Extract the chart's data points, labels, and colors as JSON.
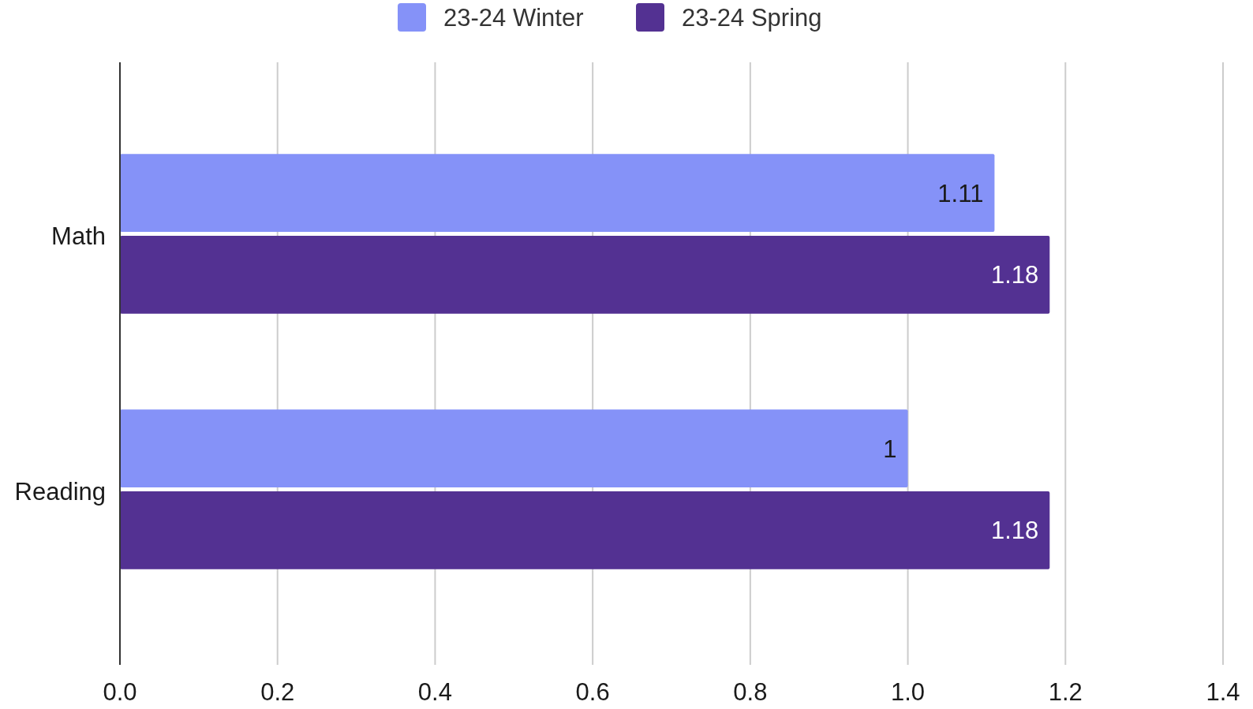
{
  "chart_data": {
    "type": "bar",
    "orientation": "horizontal",
    "categories": [
      "Math",
      "Reading"
    ],
    "series": [
      {
        "name": "23-24 Winter",
        "color": "#8592f8",
        "values": [
          1.11,
          1
        ]
      },
      {
        "name": "23-24 Spring",
        "color": "#533192",
        "values": [
          1.18,
          1.18
        ]
      }
    ],
    "xlim": [
      0,
      1.4
    ],
    "xticks": [
      {
        "value": 0,
        "label": "0.0"
      },
      {
        "value": 0.2,
        "label": "0.2"
      },
      {
        "value": 0.4,
        "label": "0.4"
      },
      {
        "value": 0.6,
        "label": "0.6"
      },
      {
        "value": 0.8,
        "label": "0.8"
      },
      {
        "value": 1,
        "label": "1.0"
      },
      {
        "value": 1.2,
        "label": "1.2"
      },
      {
        "value": 1.4,
        "label": "1.4"
      }
    ],
    "grid": "x",
    "legend": "top",
    "data_labels": true
  }
}
